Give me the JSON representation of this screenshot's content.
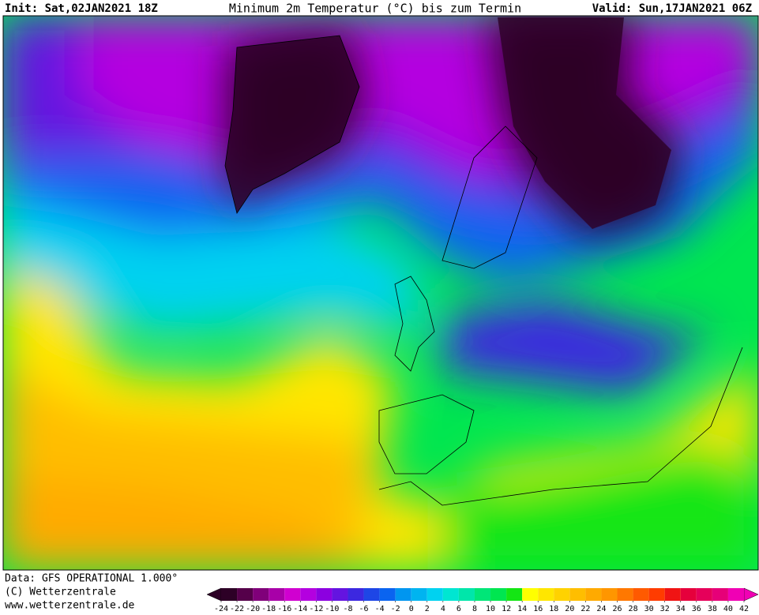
{
  "header": {
    "init": "Init: Sat,02JAN2021 18Z",
    "title": "Minimum 2m Temperatur (°C) bis zum Termin",
    "valid": "Valid: Sun,17JAN2021 06Z"
  },
  "footer": {
    "lines": [
      "Data: GFS OPERATIONAL 1.000°",
      "(C) Wetterzentrale",
      "www.wetterzentrale.de"
    ]
  },
  "legend": {
    "ticks": [
      -24,
      -22,
      -20,
      -18,
      -16,
      -14,
      -12,
      -10,
      -8,
      -6,
      -4,
      -2,
      0,
      2,
      4,
      6,
      8,
      10,
      12,
      14,
      16,
      18,
      20,
      22,
      24,
      26,
      28,
      30,
      32,
      34,
      36,
      38,
      40,
      42
    ],
    "colors": [
      "#2d0026",
      "#55004a",
      "#80007a",
      "#a800a8",
      "#d000d0",
      "#b400e0",
      "#8c00e0",
      "#6414e0",
      "#3c28e0",
      "#1e46e6",
      "#0a64f0",
      "#0096f0",
      "#00b4f0",
      "#00d2f0",
      "#00e6d2",
      "#00e6aa",
      "#00e678",
      "#00e650",
      "#14e614",
      "#ffff00",
      "#ffe600",
      "#ffd200",
      "#ffbe00",
      "#ffaa00",
      "#ff9600",
      "#ff7800",
      "#ff5a00",
      "#ff3c00",
      "#f01414",
      "#e6003c",
      "#e6005a",
      "#e60078",
      "#f000b4"
    ]
  }
}
